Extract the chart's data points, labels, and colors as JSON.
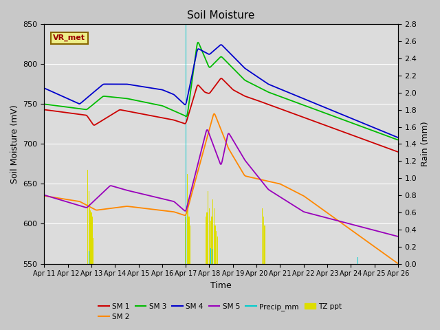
{
  "title": "Soil Moisture",
  "xlabel": "Time",
  "ylabel_left": "Soil Moisture (mV)",
  "ylabel_right": "Rain (mm)",
  "ylim_left": [
    550,
    850
  ],
  "ylim_right": [
    0.0,
    2.8
  ],
  "fig_facecolor": "#c8c8c8",
  "plot_facecolor": "#dcdcdc",
  "colors": {
    "SM1": "#cc0000",
    "SM2": "#ff8800",
    "SM3": "#00bb00",
    "SM4": "#0000cc",
    "SM5": "#9900bb",
    "Precip": "#00cccc",
    "TZ": "#dddd00"
  },
  "legend_label": "VR_met",
  "xtick_labels": [
    "Apr 11",
    "Apr 12",
    "Apr 13",
    "Apr 14",
    "Apr 15",
    "Apr 16",
    "Apr 17",
    "Apr 18",
    "Apr 19",
    "Apr 20",
    "Apr 21",
    "Apr 22",
    "Apr 23",
    "Apr 24",
    "Apr 25",
    "Apr 26"
  ],
  "yticks_left": [
    550,
    600,
    650,
    700,
    750,
    800,
    850
  ],
  "yticks_right": [
    0.0,
    0.2,
    0.4,
    0.6,
    0.8,
    1.0,
    1.2,
    1.4,
    1.6,
    1.8,
    2.0,
    2.2,
    2.4,
    2.6,
    2.8
  ]
}
